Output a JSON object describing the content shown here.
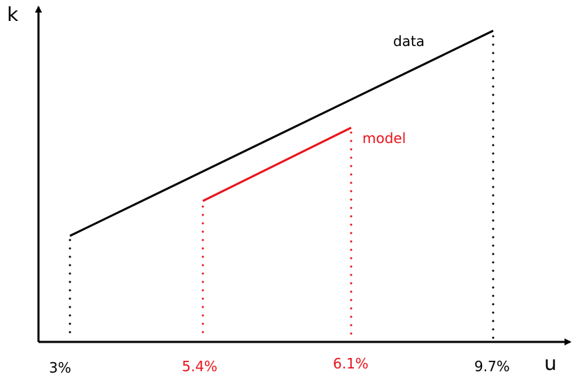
{
  "axes": {
    "x_label": "u",
    "y_label": "k"
  },
  "lines": [
    {
      "label": "data",
      "color": "#000000",
      "start_label": "3%",
      "end_label": "9.7%"
    },
    {
      "label": "model",
      "color": "#e8141c",
      "start_label": "5.4%",
      "end_label": "6.1%"
    }
  ]
}
